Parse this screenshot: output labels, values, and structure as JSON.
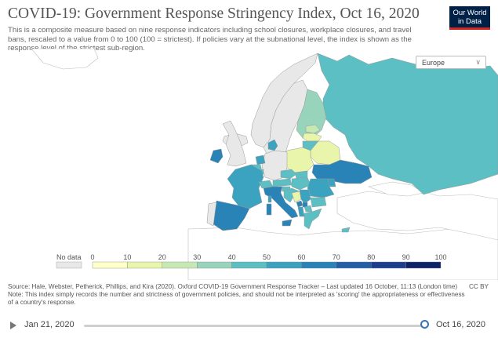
{
  "header": {
    "title": "COVID-19: Government Response Stringency Index, Oct 16, 2020",
    "subtitle": "This is a composite measure based on nine response indicators including school closures, workplace closures, and travel bans, rescaled to a value from 0 to 100 (100 = strictest). If policies vary at the subnational level, the index is shown as the response level of the strictest sub-region.",
    "logo_line1": "Our World",
    "logo_line2": "in Data"
  },
  "region_selector": {
    "value": "Europe",
    "chevron": "chevron-down-icon"
  },
  "legend": {
    "no_data_label": "No data",
    "no_data_color": "#e8e8e8",
    "ticks": [
      "0",
      "10",
      "20",
      "30",
      "40",
      "50",
      "60",
      "70",
      "80",
      "90",
      "100"
    ],
    "bins": [
      {
        "min": 0,
        "max": 10,
        "color": "#ffffc9"
      },
      {
        "min": 10,
        "max": 20,
        "color": "#e8f5ab"
      },
      {
        "min": 20,
        "max": 30,
        "color": "#c6e8b4"
      },
      {
        "min": 30,
        "max": 40,
        "color": "#98d4bb"
      },
      {
        "min": 40,
        "max": 50,
        "color": "#5cbfc3"
      },
      {
        "min": 50,
        "max": 60,
        "color": "#3ba3c0"
      },
      {
        "min": 60,
        "max": 70,
        "color": "#2a83b6"
      },
      {
        "min": 70,
        "max": 80,
        "color": "#245ea6"
      },
      {
        "min": 80,
        "max": 90,
        "color": "#1d3e8c"
      },
      {
        "min": 90,
        "max": 100,
        "color": "#0c2465"
      }
    ]
  },
  "map": {
    "land_color": "#ffffff",
    "border_color": "#b8b8b8",
    "countries": [
      {
        "name": "Iceland",
        "value": null
      },
      {
        "name": "Ireland",
        "value": 66
      },
      {
        "name": "United Kingdom",
        "value": null
      },
      {
        "name": "Norway",
        "value": null
      },
      {
        "name": "Sweden",
        "value": null
      },
      {
        "name": "Finland",
        "value": 37
      },
      {
        "name": "Estonia",
        "value": 25
      },
      {
        "name": "Latvia",
        "value": 18
      },
      {
        "name": "Lithuania",
        "value": 45
      },
      {
        "name": "Denmark",
        "value": 55
      },
      {
        "name": "Netherlands",
        "value": 52
      },
      {
        "name": "Belgium",
        "value": 47
      },
      {
        "name": "Germany",
        "value": null
      },
      {
        "name": "Poland",
        "value": 14
      },
      {
        "name": "Belarus",
        "value": 15
      },
      {
        "name": "Russia",
        "value": 45
      },
      {
        "name": "Ukraine",
        "value": 62
      },
      {
        "name": "Moldova",
        "value": 55
      },
      {
        "name": "France",
        "value": 50
      },
      {
        "name": "Luxembourg",
        "value": 45
      },
      {
        "name": "Switzerland",
        "value": 45
      },
      {
        "name": "Austria",
        "value": 42
      },
      {
        "name": "Czechia",
        "value": 48
      },
      {
        "name": "Slovakia",
        "value": 45
      },
      {
        "name": "Hungary",
        "value": 48
      },
      {
        "name": "Romania",
        "value": 55
      },
      {
        "name": "Slovenia",
        "value": 46
      },
      {
        "name": "Croatia",
        "value": 42
      },
      {
        "name": "Bosnia and Herzegovina",
        "value": 18
      },
      {
        "name": "Serbia",
        "value": 55
      },
      {
        "name": "Kosovo",
        "value": 62
      },
      {
        "name": "Montenegro",
        "value": 62
      },
      {
        "name": "Albania",
        "value": 55
      },
      {
        "name": "North Macedonia",
        "value": 45
      },
      {
        "name": "Bulgaria",
        "value": 40
      },
      {
        "name": "Greece",
        "value": 47
      },
      {
        "name": "Italy",
        "value": 66
      },
      {
        "name": "Spain",
        "value": 65
      },
      {
        "name": "Portugal",
        "value": null
      },
      {
        "name": "Sardinia",
        "value": 66
      },
      {
        "name": "Corsica",
        "value": 50
      },
      {
        "name": "Sicily",
        "value": 66
      },
      {
        "name": "Cyprus",
        "value": 45
      }
    ]
  },
  "footer": {
    "source": "Source: Hale, Webster, Petherick, Phillips, and Kira (2020). Oxford COVID-19 Government Response Tracker – Last updated 16 October, 11:13 (London time)",
    "note": "Note: This index simply records the number and strictness of government policies, and should not be interpreted as 'scoring' the appropriateness or effectiveness of a country's response.",
    "license": "CC BY"
  },
  "timeline": {
    "start_date": "Jan 21, 2020",
    "end_date": "Oct 16, 2020",
    "position": 1.0
  }
}
